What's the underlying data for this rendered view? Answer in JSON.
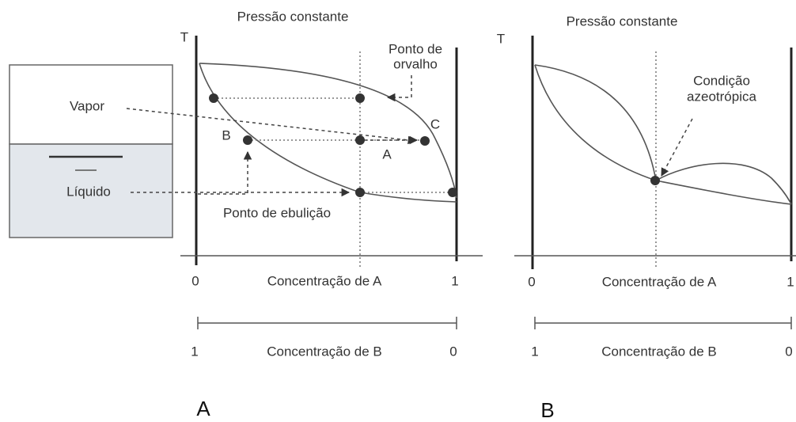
{
  "panels": [
    {
      "title": "Pressão constante",
      "axis_symbol": "T",
      "labels": {
        "dew_point": [
          "Ponto de",
          "orvalho"
        ],
        "vapor": "Vapor",
        "liquid": "Líquido",
        "point_b": "B",
        "point_a": "A",
        "point_c": "C",
        "boiling_point": "Ponto de ebulição"
      },
      "axis_a": {
        "label": "Concentração de A",
        "start": "0",
        "end": "1"
      },
      "axis_b": {
        "label": "Concentração de B",
        "start": "1",
        "end": "0"
      },
      "caption": "A"
    },
    {
      "title": "Pressão constante",
      "axis_symbol": "T",
      "labels": {
        "azeotrope": [
          "Condição",
          "azeotrópica"
        ]
      },
      "axis_a": {
        "label": "Concentração de A",
        "start": "0",
        "end": "1"
      },
      "axis_b": {
        "label": "Concentração de B",
        "start": "1",
        "end": "0"
      },
      "caption": "B"
    }
  ]
}
